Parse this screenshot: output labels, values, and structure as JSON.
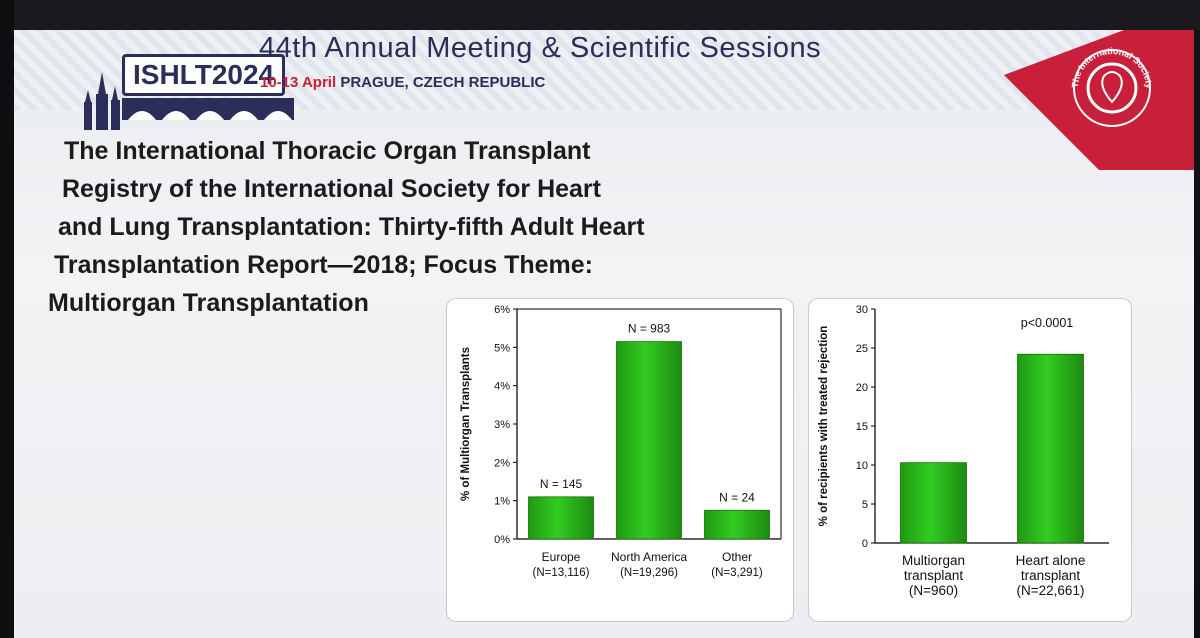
{
  "header": {
    "logo_text": "ISHLT",
    "logo_year": "2024",
    "meeting_title": "44th Annual Meeting & Scientific Sessions",
    "dates": "10-13 April",
    "location": "PRAGUE, CZECH REPUBLIC",
    "society_seal_text": "The International Society for Heart & Lung Transplantation"
  },
  "headline": {
    "lines": [
      "The International Thoracic Organ Transplant",
      "Registry of the International Society for Heart",
      "and Lung Transplantation: Thirty-fifth Adult Heart",
      "Transplantation Report—2018; Focus Theme:",
      "Multiorgan Transplantation"
    ]
  },
  "colors": {
    "bar_green": "#33cc22",
    "brand_red": "#c8203a",
    "brand_navy": "#2b2d5a"
  },
  "chart_data": [
    {
      "type": "bar",
      "title": "",
      "xlabel": "",
      "ylabel": "% of Multiorgan Transplants",
      "ylim": [
        0,
        6
      ],
      "yticks": [
        0,
        1,
        2,
        3,
        4,
        5,
        6
      ],
      "ytick_labels": [
        "0%",
        "1%",
        "2%",
        "3%",
        "4%",
        "5%",
        "6%"
      ],
      "categories": [
        "Europe",
        "North America",
        "Other"
      ],
      "category_sublabels": [
        "(N=13,116)",
        "(N=19,296)",
        "(N=3,291)"
      ],
      "values": [
        1.1,
        5.15,
        0.75
      ],
      "data_labels": [
        "N = 145",
        "N = 983",
        "N = 24"
      ]
    },
    {
      "type": "bar",
      "title": "",
      "xlabel": "",
      "ylabel": "% of recipients with treated rejection",
      "ylim": [
        0,
        30
      ],
      "yticks": [
        0,
        5,
        10,
        15,
        20,
        25,
        30
      ],
      "ytick_labels": [
        "0",
        "5",
        "10",
        "15",
        "20",
        "25",
        "30"
      ],
      "categories": [
        "Multiorgan transplant",
        "Heart alone transplant"
      ],
      "category_lines": [
        [
          "Multiorgan",
          "transplant",
          "(N=960)"
        ],
        [
          "Heart alone",
          "transplant",
          "(N=22,661)"
        ]
      ],
      "values": [
        10.3,
        24.2
      ],
      "annotation": "p<0.0001"
    }
  ]
}
